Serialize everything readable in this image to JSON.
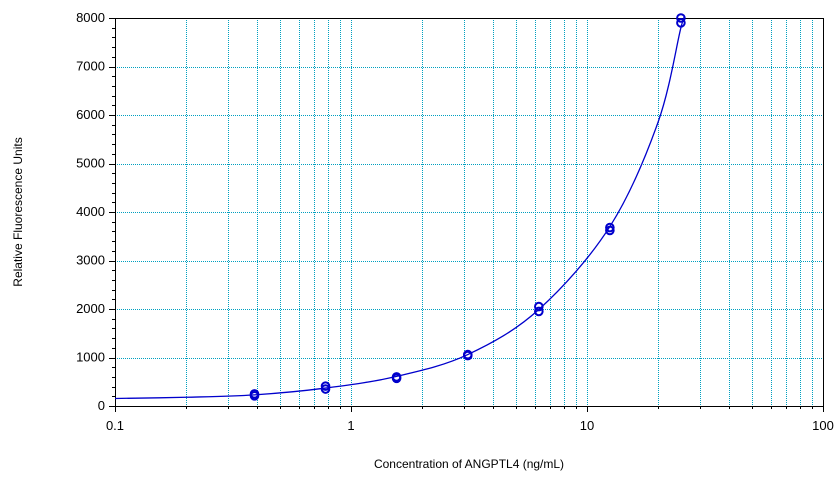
{
  "chart_data": {
    "type": "scatter",
    "xlabel": "Concentration of ANGPTL4 (ng/mL)",
    "ylabel": "Relative Fluorescence Units",
    "x_scale": "log",
    "xlim": [
      0.1,
      100
    ],
    "ylim": [
      0,
      8000
    ],
    "x_ticks": [
      0.1,
      1,
      10,
      100
    ],
    "x_tick_labels": [
      "0.1",
      "1",
      "10",
      "100"
    ],
    "y_ticks": [
      0,
      1000,
      2000,
      3000,
      4000,
      5000,
      6000,
      7000,
      8000
    ],
    "y_tick_labels": [
      "0",
      "1000",
      "2000",
      "3000",
      "4000",
      "5000",
      "6000",
      "7000",
      "8000"
    ],
    "grid": true,
    "series": [
      {
        "kind": "points",
        "x": [
          0.39,
          0.39,
          0.78,
          0.78,
          1.56,
          1.56,
          3.125,
          3.125,
          6.25,
          6.25,
          12.5,
          12.5,
          25,
          25
        ],
        "y": [
          210,
          250,
          350,
          410,
          570,
          600,
          1040,
          1060,
          1950,
          2050,
          3620,
          3680,
          7900,
          8000
        ]
      },
      {
        "kind": "fit",
        "x": [
          0.1,
          0.2,
          0.39,
          0.78,
          1.56,
          3.125,
          6.25,
          12.5,
          20,
          25,
          26
        ],
        "y": [
          155,
          180,
          230,
          370,
          610,
          1060,
          1990,
          3700,
          5850,
          7800,
          8000
        ]
      }
    ],
    "colors": {
      "axis": "#000000",
      "grid": "#00a0c0",
      "series": "#0000cc"
    }
  }
}
